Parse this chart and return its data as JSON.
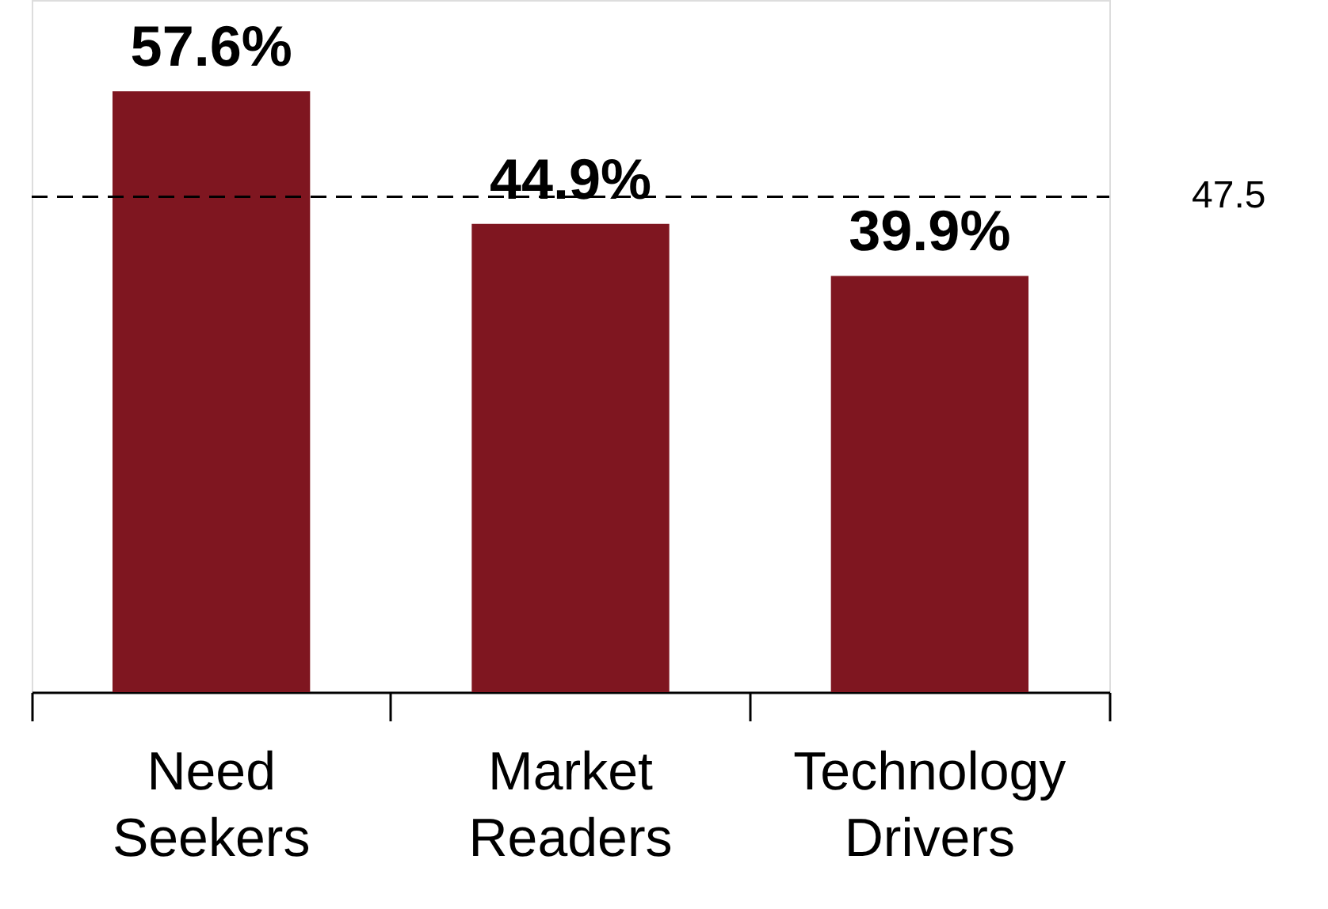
{
  "chart_data": {
    "type": "bar",
    "categories": [
      "Need Seekers",
      "Market Readers",
      "Technology Drivers"
    ],
    "values": [
      57.6,
      44.9,
      39.9
    ],
    "color": "#7f1620",
    "value_labels": [
      "57.6%",
      "44.9%",
      "39.9%"
    ],
    "ref_lines": [
      {
        "axis": "y",
        "value": 47.5,
        "label": "47.5",
        "color": "#000000",
        "line_style": "dashed"
      }
    ]
  }
}
